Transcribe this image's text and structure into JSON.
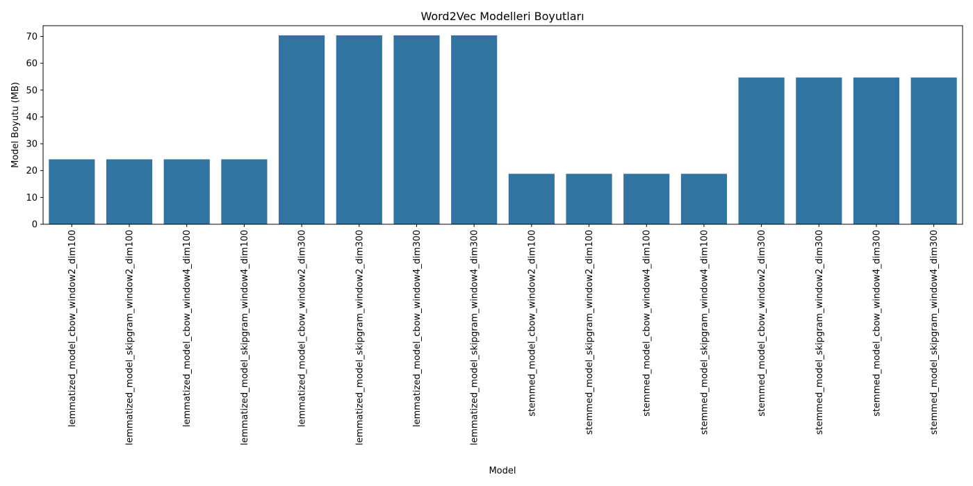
{
  "chart_data": {
    "type": "bar",
    "title": "Word2Vec Modelleri Boyutları",
    "xlabel": "Model",
    "ylabel": "Model Boyutu (MB)",
    "ylim": [
      0,
      74
    ],
    "yticks": [
      0,
      10,
      20,
      30,
      40,
      50,
      60,
      70
    ],
    "grid": false,
    "legend": "none",
    "bar_color": "#3274a1",
    "categories": [
      "lemmatized_model_cbow_window2_dim100",
      "lemmatized_model_skipgram_window2_dim100",
      "lemmatized_model_cbow_window4_dim100",
      "lemmatized_model_skipgram_window4_dim100",
      "lemmatized_model_cbow_window2_dim300",
      "lemmatized_model_skipgram_window2_dim300",
      "lemmatized_model_cbow_window4_dim300",
      "lemmatized_model_skipgram_window4_dim300",
      "stemmed_model_cbow_window2_dim100",
      "stemmed_model_skipgram_window2_dim100",
      "stemmed_model_cbow_window4_dim100",
      "stemmed_model_skipgram_window4_dim100",
      "stemmed_model_cbow_window2_dim300",
      "stemmed_model_skipgram_window2_dim300",
      "stemmed_model_cbow_window4_dim300",
      "stemmed_model_skipgram_window4_dim300"
    ],
    "values": [
      24.2,
      24.2,
      24.2,
      24.2,
      70.4,
      70.4,
      70.4,
      70.4,
      18.8,
      18.8,
      18.8,
      18.8,
      54.7,
      54.7,
      54.7,
      54.7
    ]
  }
}
